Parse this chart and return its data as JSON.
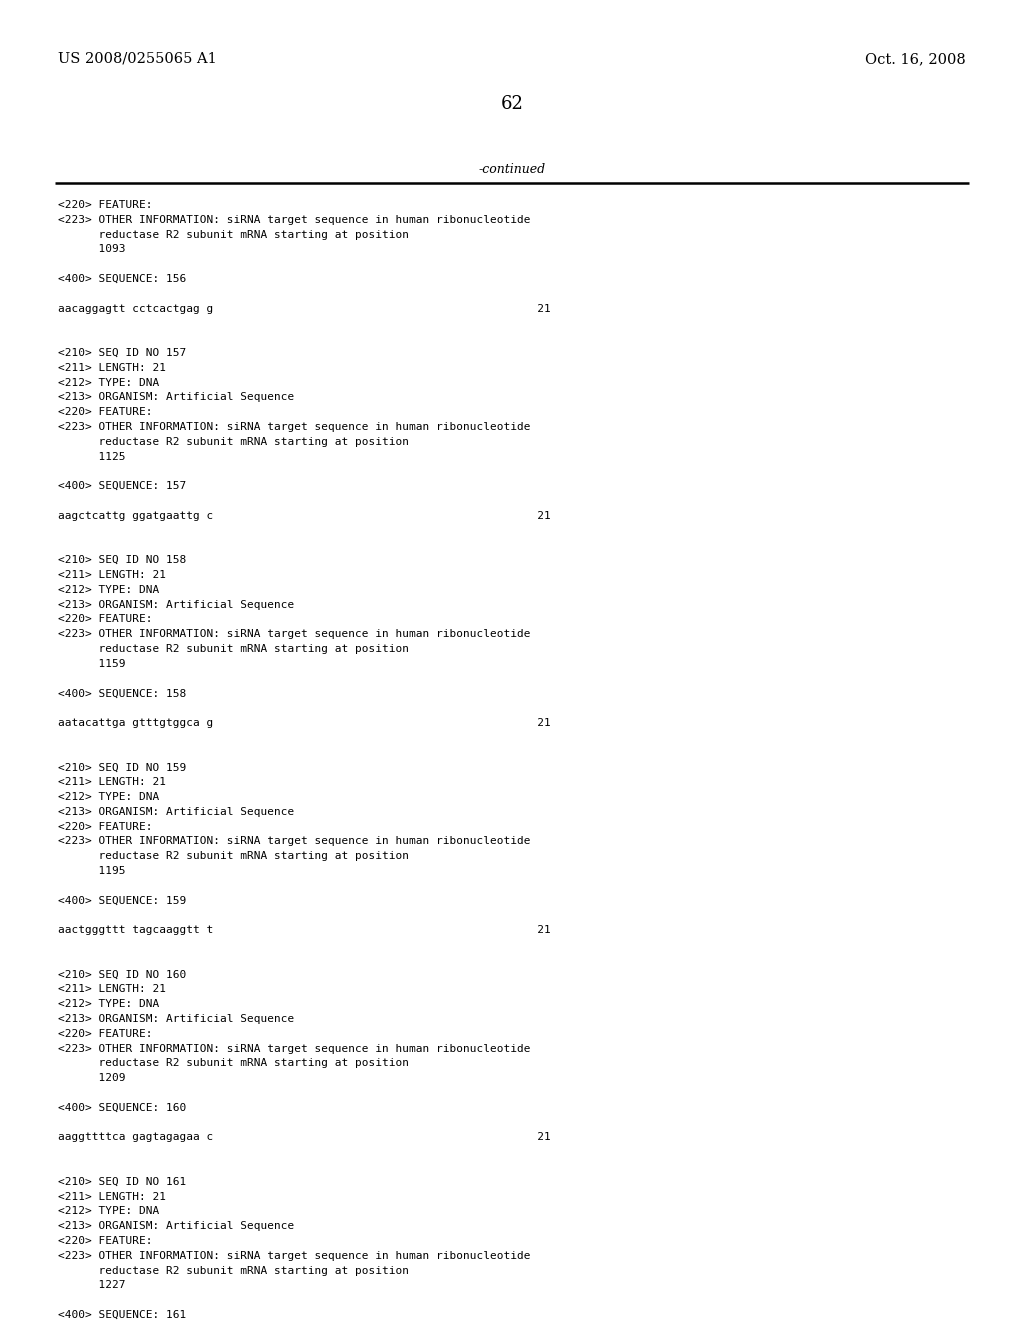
{
  "header_left": "US 2008/0255065 A1",
  "header_right": "Oct. 16, 2008",
  "page_number": "62",
  "continued_text": "-continued",
  "background_color": "#ffffff",
  "text_color": "#000000",
  "font_size": 8.0,
  "header_font_size": 10.5,
  "page_num_font_size": 13,
  "content_lines": [
    "<220> FEATURE:",
    "<223> OTHER INFORMATION: siRNA target sequence in human ribonucleotide",
    "      reductase R2 subunit mRNA starting at position",
    "      1093",
    "",
    "<400> SEQUENCE: 156",
    "",
    "aacaggagtt cctcactgag g                                                21",
    "",
    "",
    "<210> SEQ ID NO 157",
    "<211> LENGTH: 21",
    "<212> TYPE: DNA",
    "<213> ORGANISM: Artificial Sequence",
    "<220> FEATURE:",
    "<223> OTHER INFORMATION: siRNA target sequence in human ribonucleotide",
    "      reductase R2 subunit mRNA starting at position",
    "      1125",
    "",
    "<400> SEQUENCE: 157",
    "",
    "aagctcattg ggatgaattg c                                                21",
    "",
    "",
    "<210> SEQ ID NO 158",
    "<211> LENGTH: 21",
    "<212> TYPE: DNA",
    "<213> ORGANISM: Artificial Sequence",
    "<220> FEATURE:",
    "<223> OTHER INFORMATION: siRNA target sequence in human ribonucleotide",
    "      reductase R2 subunit mRNA starting at position",
    "      1159",
    "",
    "<400> SEQUENCE: 158",
    "",
    "aatacattga gtttgtggca g                                                21",
    "",
    "",
    "<210> SEQ ID NO 159",
    "<211> LENGTH: 21",
    "<212> TYPE: DNA",
    "<213> ORGANISM: Artificial Sequence",
    "<220> FEATURE:",
    "<223> OTHER INFORMATION: siRNA target sequence in human ribonucleotide",
    "      reductase R2 subunit mRNA starting at position",
    "      1195",
    "",
    "<400> SEQUENCE: 159",
    "",
    "aactgggttt tagcaaggtt t                                                21",
    "",
    "",
    "<210> SEQ ID NO 160",
    "<211> LENGTH: 21",
    "<212> TYPE: DNA",
    "<213> ORGANISM: Artificial Sequence",
    "<220> FEATURE:",
    "<223> OTHER INFORMATION: siRNA target sequence in human ribonucleotide",
    "      reductase R2 subunit mRNA starting at position",
    "      1209",
    "",
    "<400> SEQUENCE: 160",
    "",
    "aaggttttca gagtagagaa c                                                21",
    "",
    "",
    "<210> SEQ ID NO 161",
    "<211> LENGTH: 21",
    "<212> TYPE: DNA",
    "<213> ORGANISM: Artificial Sequence",
    "<220> FEATURE:",
    "<223> OTHER INFORMATION: siRNA target sequence in human ribonucleotide",
    "      reductase R2 subunit mRNA starting at position",
    "      1227",
    "",
    "<400> SEQUENCE: 161"
  ]
}
